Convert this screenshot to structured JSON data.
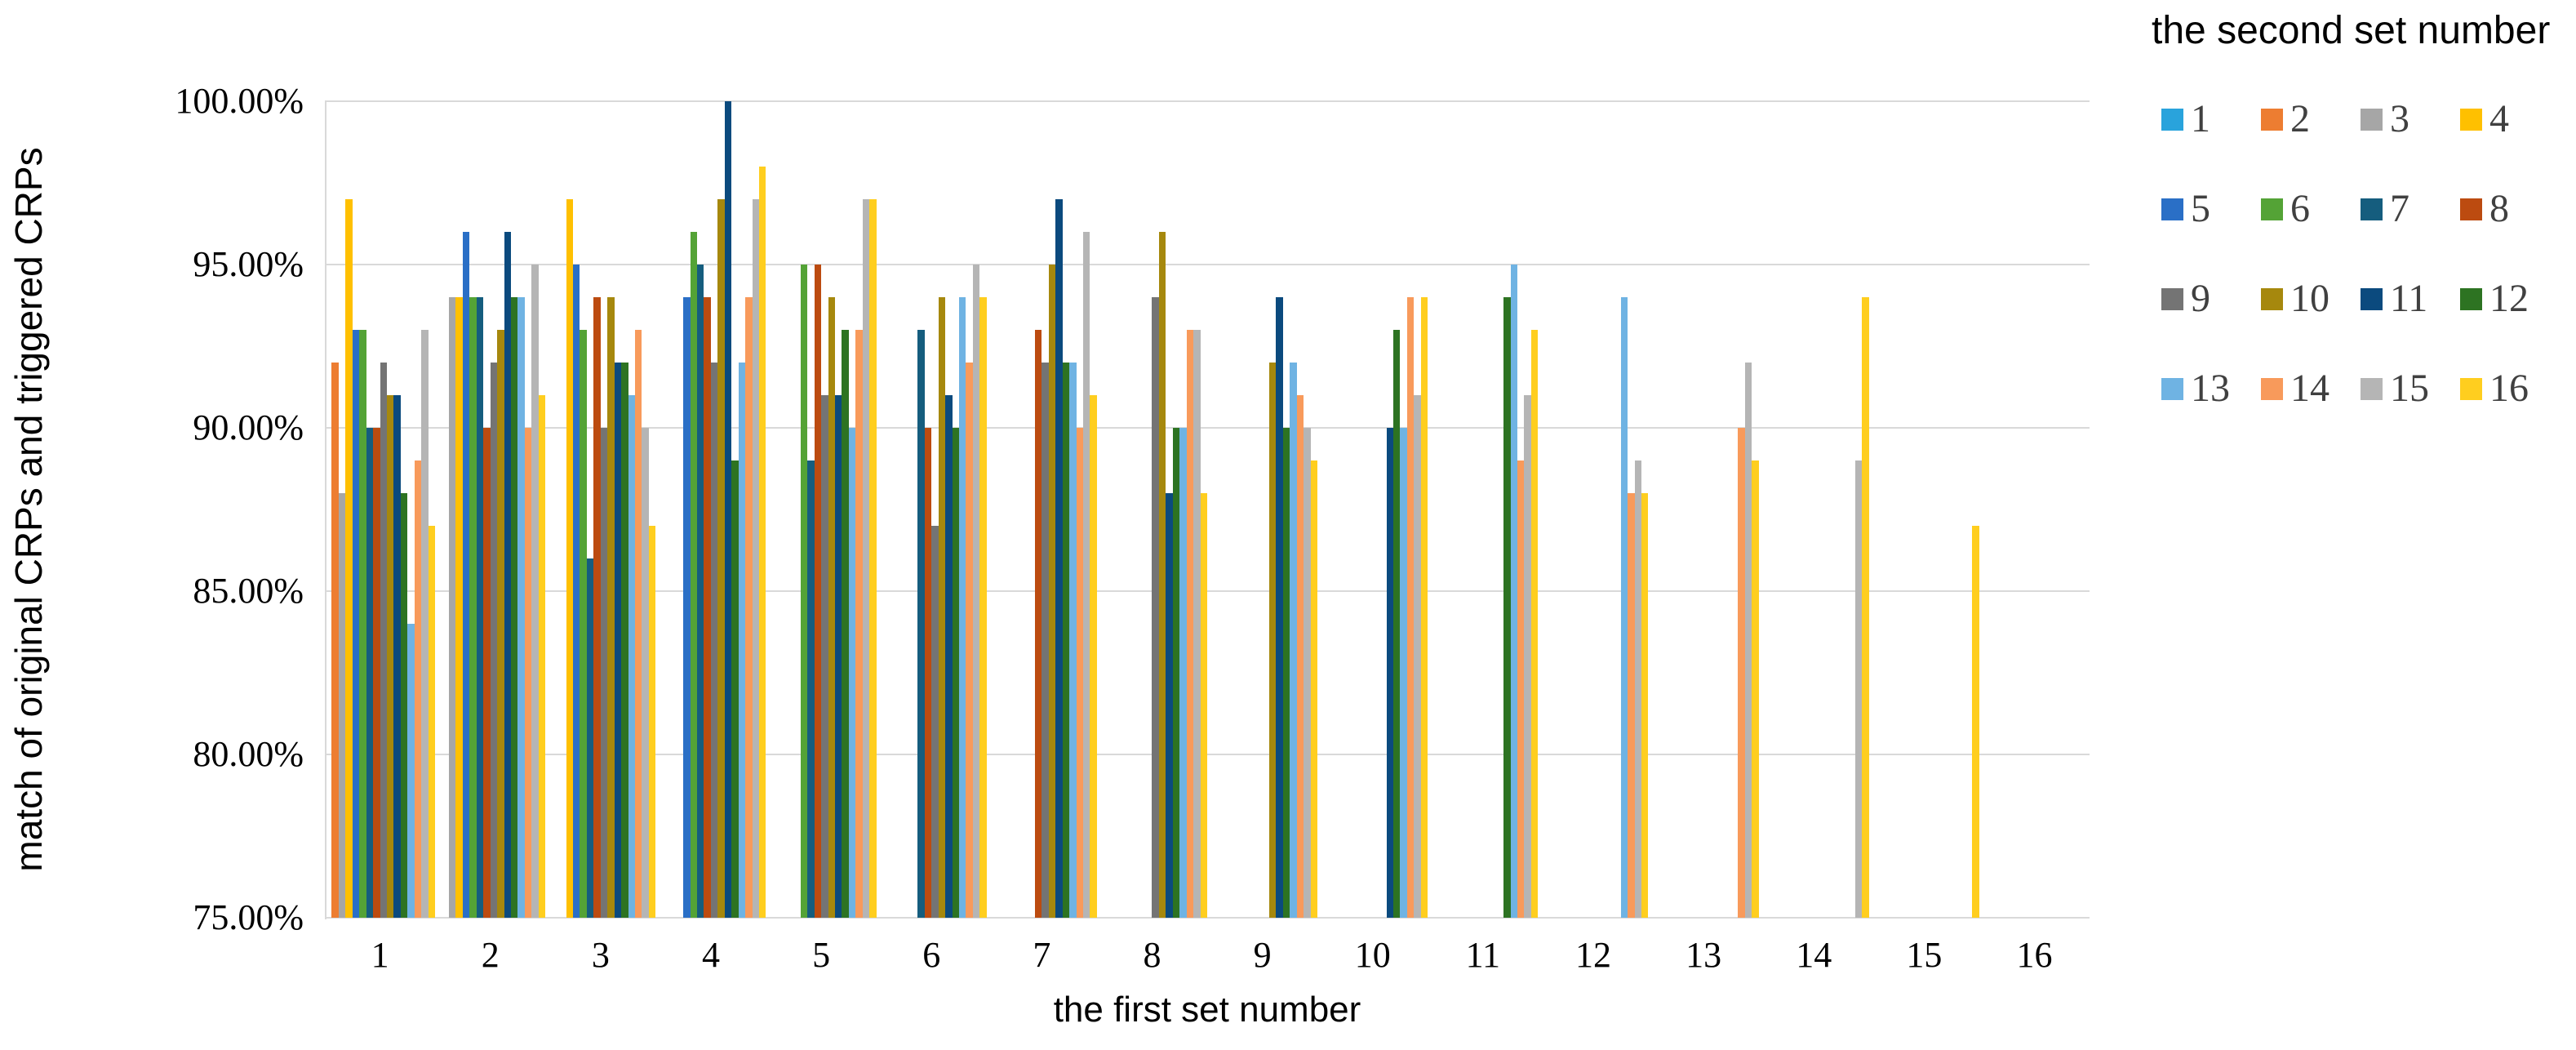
{
  "page": {
    "background": "#ffffff"
  },
  "chart_data": {
    "type": "bar",
    "title": "",
    "xlabel": "the first set number",
    "ylabel": "match of original CRPs and triggered CRPs",
    "legend_title": "the second set number",
    "legend_position": "top-right",
    "grid": "horizontal",
    "gridline_color": "#d9d9d9",
    "categories": [
      "1",
      "2",
      "3",
      "4",
      "5",
      "6",
      "7",
      "8",
      "9",
      "10",
      "11",
      "12",
      "13",
      "14",
      "15",
      "16"
    ],
    "ylim": [
      75,
      100
    ],
    "ytick_step": 5,
    "ytick_labels": [
      "75.00%",
      "80.00%",
      "85.00%",
      "90.00%",
      "95.00%",
      "100.00%"
    ],
    "value_unit": "percent",
    "series": [
      {
        "name": "1",
        "color": "#29A3DC",
        "values": [
          null,
          null,
          null,
          null,
          null,
          null,
          null,
          null,
          null,
          null,
          null,
          null,
          null,
          null,
          null,
          null
        ]
      },
      {
        "name": "2",
        "color": "#ED7D31",
        "values": [
          92,
          null,
          null,
          null,
          null,
          null,
          null,
          null,
          null,
          null,
          null,
          null,
          null,
          null,
          null,
          null
        ]
      },
      {
        "name": "3",
        "color": "#A6A6A6",
        "values": [
          88,
          94,
          null,
          null,
          null,
          null,
          null,
          null,
          null,
          null,
          null,
          null,
          null,
          null,
          null,
          null
        ]
      },
      {
        "name": "4",
        "color": "#FFC000",
        "values": [
          97,
          94,
          97,
          null,
          null,
          null,
          null,
          null,
          null,
          null,
          null,
          null,
          null,
          null,
          null,
          null
        ]
      },
      {
        "name": "5",
        "color": "#2A6FC6",
        "values": [
          93,
          96,
          95,
          94,
          null,
          null,
          null,
          null,
          null,
          null,
          null,
          null,
          null,
          null,
          null,
          null
        ]
      },
      {
        "name": "6",
        "color": "#54A336",
        "values": [
          93,
          94,
          93,
          96,
          95,
          null,
          null,
          null,
          null,
          null,
          null,
          null,
          null,
          null,
          null,
          null
        ]
      },
      {
        "name": "7",
        "color": "#155D7E",
        "values": [
          90,
          94,
          86,
          95,
          89,
          93,
          null,
          null,
          null,
          null,
          null,
          null,
          null,
          null,
          null,
          null
        ]
      },
      {
        "name": "8",
        "color": "#BC4B10",
        "values": [
          90,
          90,
          94,
          94,
          95,
          90,
          93,
          null,
          null,
          null,
          null,
          null,
          null,
          null,
          null,
          null
        ]
      },
      {
        "name": "9",
        "color": "#747474",
        "values": [
          92,
          92,
          90,
          92,
          91,
          87,
          92,
          94,
          null,
          null,
          null,
          null,
          null,
          null,
          null,
          null
        ]
      },
      {
        "name": "10",
        "color": "#A6880D",
        "values": [
          91,
          93,
          94,
          97,
          94,
          94,
          95,
          96,
          92,
          null,
          null,
          null,
          null,
          null,
          null,
          null
        ]
      },
      {
        "name": "11",
        "color": "#0B4A7E",
        "values": [
          91,
          96,
          92,
          100,
          91,
          91,
          97,
          88,
          94,
          90,
          null,
          null,
          null,
          null,
          null,
          null
        ]
      },
      {
        "name": "12",
        "color": "#2D7322",
        "values": [
          88,
          94,
          92,
          89,
          93,
          90,
          92,
          90,
          90,
          93,
          94,
          null,
          null,
          null,
          null,
          null
        ]
      },
      {
        "name": "13",
        "color": "#6FB3E3",
        "values": [
          84,
          94,
          91,
          92,
          90,
          94,
          92,
          90,
          92,
          90,
          95,
          94,
          null,
          null,
          null,
          null
        ]
      },
      {
        "name": "14",
        "color": "#F89A5B",
        "values": [
          89,
          90,
          93,
          94,
          93,
          92,
          90,
          93,
          91,
          94,
          89,
          88,
          90,
          null,
          null,
          null
        ]
      },
      {
        "name": "15",
        "color": "#B5B5B5",
        "values": [
          93,
          95,
          90,
          97,
          97,
          95,
          96,
          93,
          90,
          91,
          91,
          89,
          92,
          89,
          null,
          null
        ]
      },
      {
        "name": "16",
        "color": "#FFCE1F",
        "values": [
          87,
          91,
          87,
          98,
          97,
          94,
          91,
          88,
          89,
          94,
          93,
          88,
          89,
          94,
          87,
          null
        ]
      }
    ]
  }
}
